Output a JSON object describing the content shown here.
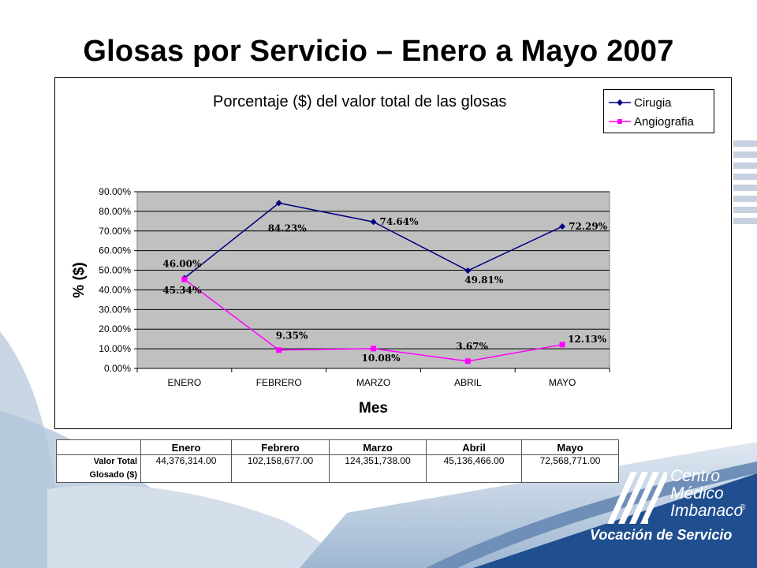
{
  "slide": {
    "title": "Glosas por Servicio – Enero a Mayo 2007"
  },
  "chart_data": {
    "type": "line",
    "title": "Porcentaje ($) del valor total de las glosas",
    "xlabel": "Mes",
    "ylabel": "% ($)",
    "categories": [
      "ENERO",
      "FEBRERO",
      "MARZO",
      "ABRIL",
      "MAYO"
    ],
    "ylim": [
      0,
      90
    ],
    "yticks": [
      "0.00%",
      "10.00%",
      "20.00%",
      "30.00%",
      "40.00%",
      "50.00%",
      "60.00%",
      "70.00%",
      "80.00%",
      "90.00%"
    ],
    "grid": true,
    "legend_position": "top-right",
    "plot_background": "#c0c0c0",
    "series": [
      {
        "name": "Cirugia",
        "color": "#000080",
        "marker": "diamond",
        "values": [
          46.0,
          84.23,
          74.64,
          49.81,
          72.29
        ],
        "labels": [
          "46.00%",
          "84.23%",
          "74.64%",
          "49.81%",
          "72.29%"
        ]
      },
      {
        "name": "Angiografia",
        "color": "#ff00ff",
        "marker": "square",
        "values": [
          45.34,
          9.35,
          10.08,
          3.67,
          12.13
        ],
        "labels": [
          "45.34%",
          "9.35%",
          "10.08%",
          "3.67%",
          "12.13%"
        ]
      }
    ]
  },
  "table": {
    "headers": [
      "Enero",
      "Febrero",
      "Marzo",
      "Abril",
      "Mayo"
    ],
    "row_label_line1": "Valor Total",
    "row_label_line2": "Glosado ($)",
    "values": [
      "44,376,314.00",
      "102,158,677.00",
      "124,351,738.00",
      "45,136,466.00",
      "72,568,771.00"
    ]
  },
  "logo": {
    "line1": "Centro",
    "line2": "Médico",
    "line3": "Imbanaco",
    "mark": "®",
    "tagline": "Vocación de Servicio"
  }
}
